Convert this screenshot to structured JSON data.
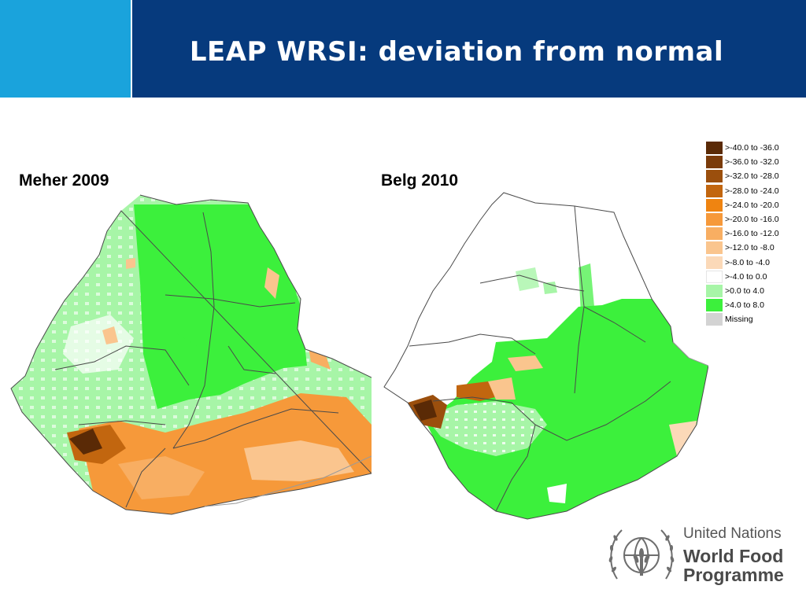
{
  "slide": {
    "title": "LEAP WRSI: deviation from normal"
  },
  "maps": [
    {
      "label": "Meher 2009"
    },
    {
      "label": "Belg 2010"
    }
  ],
  "legend": [
    {
      "label": ">-40.0 to -36.0",
      "color": "#5a2a06"
    },
    {
      "label": ">-36.0 to -32.0",
      "color": "#7a3b0a"
    },
    {
      "label": ">-32.0 to -28.0",
      "color": "#9b4f0d"
    },
    {
      "label": ">-28.0 to -24.0",
      "color": "#c2660f"
    },
    {
      "label": ">-24.0 to -20.0",
      "color": "#ef8411"
    },
    {
      "label": ">-20.0 to -16.0",
      "color": "#f6993a"
    },
    {
      "label": ">-16.0 to -12.0",
      "color": "#f8ae62"
    },
    {
      "label": ">-12.0 to -8.0",
      "color": "#fac58e"
    },
    {
      "label": ">-8.0 to -4.0",
      "color": "#fbd9b8"
    },
    {
      "label": ">-4.0 to 0.0",
      "color": "#ffffff"
    },
    {
      "label": ">0.0 to 4.0",
      "color": "#a7f5a7"
    },
    {
      "label": ">4.0 to 8.0",
      "color": "#3cf03c"
    },
    {
      "label": "Missing",
      "color": "#d3d3d3"
    }
  ],
  "logo": {
    "line1": "United Nations",
    "line2": "World Food",
    "line3": "Programme",
    "emblem_icon": "wfp-wheat-globe-emblem-icon"
  }
}
